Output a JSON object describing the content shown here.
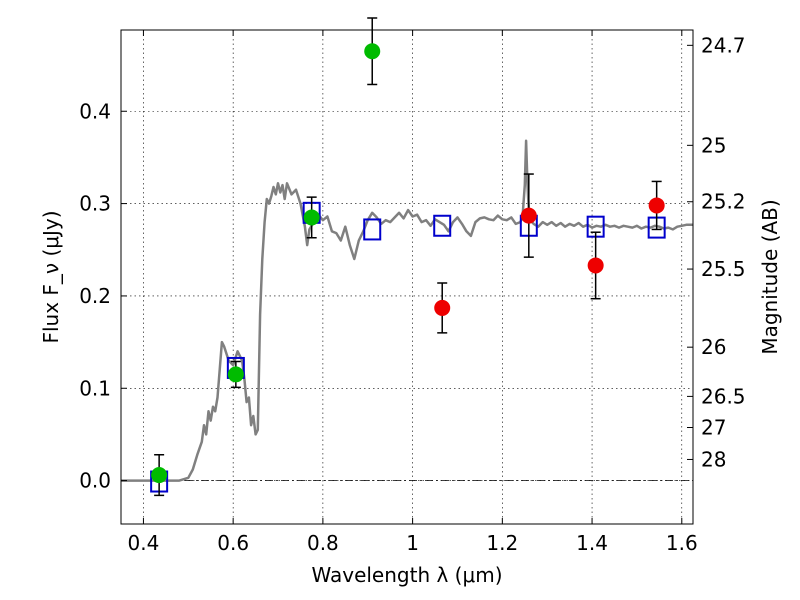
{
  "chart_data": {
    "type": "scatter",
    "xlabel": "Wavelength λ (μm)",
    "ylabel": "Flux F_ν (μJy)",
    "y2label": "Magnitude (AB)",
    "xlim": [
      0.35,
      1.625
    ],
    "ylim": [
      -0.047,
      0.488
    ],
    "grid": true,
    "x_ticks": [
      0.4,
      0.6,
      0.8,
      1.0,
      1.2,
      1.4,
      1.6
    ],
    "x_tick_labels": [
      "0.4",
      "0.6",
      "0.8",
      "1",
      "1.2",
      "1.4",
      "1.6"
    ],
    "y_ticks": [
      0.0,
      0.1,
      0.2,
      0.3,
      0.4
    ],
    "y_tick_labels": [
      "0.0",
      "0.1",
      "0.2",
      "0.3",
      "0.4"
    ],
    "mag_ticks": [
      {
        "label": "24.7",
        "flux": 0.4714
      },
      {
        "label": "25",
        "flux": 0.3631
      },
      {
        "label": "25.2",
        "flux": 0.302
      },
      {
        "label": "25.5",
        "flux": 0.2291
      },
      {
        "label": "26",
        "flux": 0.1445
      },
      {
        "label": "26.5",
        "flux": 0.0912
      },
      {
        "label": "27",
        "flux": 0.0575
      },
      {
        "label": "28",
        "flux": 0.0229
      }
    ],
    "colors": {
      "green_points": "#00bb00",
      "red_points": "#ee0000",
      "model_boxes": "#0000cc",
      "spectrum": "#808080",
      "errorbars": "#000000"
    },
    "series": [
      {
        "marker": "circle-green",
        "points": [
          {
            "x": 0.435,
            "y": 0.006,
            "yerr": 0.022
          },
          {
            "x": 0.606,
            "y": 0.115,
            "yerr": 0.014
          },
          {
            "x": 0.775,
            "y": 0.285,
            "yerr": 0.022
          },
          {
            "x": 0.91,
            "y": 0.465,
            "yerr": 0.036
          }
        ]
      },
      {
        "marker": "circle-red",
        "points": [
          {
            "x": 1.066,
            "y": 0.187,
            "yerr": 0.027
          },
          {
            "x": 1.259,
            "y": 0.287,
            "yerr": 0.045
          },
          {
            "x": 1.408,
            "y": 0.233,
            "yerr": 0.036
          },
          {
            "x": 1.544,
            "y": 0.298,
            "yerr": 0.026
          }
        ]
      },
      {
        "marker": "square-blue",
        "points": [
          {
            "x": 0.435,
            "y": -0.001
          },
          {
            "x": 0.606,
            "y": 0.122
          },
          {
            "x": 0.775,
            "y": 0.29
          },
          {
            "x": 0.91,
            "y": 0.272
          },
          {
            "x": 1.066,
            "y": 0.276
          },
          {
            "x": 1.259,
            "y": 0.276
          },
          {
            "x": 1.408,
            "y": 0.275
          },
          {
            "x": 1.544,
            "y": 0.274
          }
        ]
      },
      {
        "marker": "line-gray",
        "points": [
          [
            0.35,
            0.0
          ],
          [
            0.48,
            0.0
          ],
          [
            0.5,
            0.003
          ],
          [
            0.51,
            0.012
          ],
          [
            0.52,
            0.028
          ],
          [
            0.53,
            0.042
          ],
          [
            0.535,
            0.06
          ],
          [
            0.54,
            0.05
          ],
          [
            0.545,
            0.075
          ],
          [
            0.55,
            0.065
          ],
          [
            0.555,
            0.08
          ],
          [
            0.56,
            0.075
          ],
          [
            0.565,
            0.09
          ],
          [
            0.57,
            0.12
          ],
          [
            0.575,
            0.15
          ],
          [
            0.58,
            0.145
          ],
          [
            0.59,
            0.13
          ],
          [
            0.6,
            0.125
          ],
          [
            0.61,
            0.14
          ],
          [
            0.62,
            0.13
          ],
          [
            0.625,
            0.11
          ],
          [
            0.63,
            0.085
          ],
          [
            0.635,
            0.09
          ],
          [
            0.64,
            0.06
          ],
          [
            0.645,
            0.07
          ],
          [
            0.65,
            0.05
          ],
          [
            0.655,
            0.055
          ],
          [
            0.66,
            0.18
          ],
          [
            0.665,
            0.24
          ],
          [
            0.67,
            0.28
          ],
          [
            0.675,
            0.305
          ],
          [
            0.68,
            0.3
          ],
          [
            0.685,
            0.308
          ],
          [
            0.69,
            0.318
          ],
          [
            0.695,
            0.31
          ],
          [
            0.7,
            0.322
          ],
          [
            0.705,
            0.312
          ],
          [
            0.71,
            0.32
          ],
          [
            0.715,
            0.305
          ],
          [
            0.72,
            0.322
          ],
          [
            0.73,
            0.31
          ],
          [
            0.74,
            0.315
          ],
          [
            0.75,
            0.3
          ],
          [
            0.76,
            0.275
          ],
          [
            0.765,
            0.255
          ],
          [
            0.77,
            0.272
          ],
          [
            0.78,
            0.28
          ],
          [
            0.79,
            0.288
          ],
          [
            0.8,
            0.282
          ],
          [
            0.81,
            0.286
          ],
          [
            0.82,
            0.27
          ],
          [
            0.83,
            0.268
          ],
          [
            0.84,
            0.26
          ],
          [
            0.85,
            0.275
          ],
          [
            0.86,
            0.255
          ],
          [
            0.87,
            0.24
          ],
          [
            0.88,
            0.26
          ],
          [
            0.89,
            0.27
          ],
          [
            0.9,
            0.282
          ],
          [
            0.91,
            0.29
          ],
          [
            0.92,
            0.285
          ],
          [
            0.93,
            0.278
          ],
          [
            0.94,
            0.282
          ],
          [
            0.95,
            0.28
          ],
          [
            0.96,
            0.285
          ],
          [
            0.97,
            0.29
          ],
          [
            0.98,
            0.284
          ],
          [
            0.99,
            0.293
          ],
          [
            1.0,
            0.286
          ],
          [
            1.01,
            0.288
          ],
          [
            1.02,
            0.28
          ],
          [
            1.03,
            0.282
          ],
          [
            1.04,
            0.276
          ],
          [
            1.05,
            0.283
          ],
          [
            1.06,
            0.28
          ],
          [
            1.07,
            0.277
          ],
          [
            1.08,
            0.27
          ],
          [
            1.09,
            0.28
          ],
          [
            1.1,
            0.285
          ],
          [
            1.11,
            0.278
          ],
          [
            1.12,
            0.27
          ],
          [
            1.13,
            0.265
          ],
          [
            1.14,
            0.28
          ],
          [
            1.15,
            0.284
          ],
          [
            1.16,
            0.285
          ],
          [
            1.17,
            0.283
          ],
          [
            1.18,
            0.282
          ],
          [
            1.19,
            0.287
          ],
          [
            1.2,
            0.283
          ],
          [
            1.21,
            0.282
          ],
          [
            1.22,
            0.285
          ],
          [
            1.23,
            0.278
          ],
          [
            1.24,
            0.28
          ],
          [
            1.245,
            0.285
          ],
          [
            1.25,
            0.32
          ],
          [
            1.253,
            0.368
          ],
          [
            1.256,
            0.32
          ],
          [
            1.26,
            0.283
          ],
          [
            1.27,
            0.278
          ],
          [
            1.28,
            0.275
          ],
          [
            1.29,
            0.28
          ],
          [
            1.3,
            0.277
          ],
          [
            1.31,
            0.28
          ],
          [
            1.32,
            0.276
          ],
          [
            1.33,
            0.279
          ],
          [
            1.34,
            0.275
          ],
          [
            1.35,
            0.278
          ],
          [
            1.36,
            0.276
          ],
          [
            1.37,
            0.279
          ],
          [
            1.38,
            0.275
          ],
          [
            1.39,
            0.277
          ],
          [
            1.4,
            0.274
          ],
          [
            1.41,
            0.276
          ],
          [
            1.42,
            0.275
          ],
          [
            1.43,
            0.277
          ],
          [
            1.44,
            0.275
          ],
          [
            1.45,
            0.276
          ],
          [
            1.46,
            0.274
          ],
          [
            1.47,
            0.276
          ],
          [
            1.48,
            0.275
          ],
          [
            1.49,
            0.274
          ],
          [
            1.5,
            0.276
          ],
          [
            1.51,
            0.273
          ],
          [
            1.52,
            0.275
          ],
          [
            1.53,
            0.274
          ],
          [
            1.54,
            0.276
          ],
          [
            1.55,
            0.275
          ],
          [
            1.56,
            0.273
          ],
          [
            1.57,
            0.274
          ],
          [
            1.58,
            0.272
          ],
          [
            1.59,
            0.275
          ],
          [
            1.6,
            0.276
          ],
          [
            1.61,
            0.277
          ],
          [
            1.625,
            0.277
          ]
        ]
      }
    ]
  }
}
